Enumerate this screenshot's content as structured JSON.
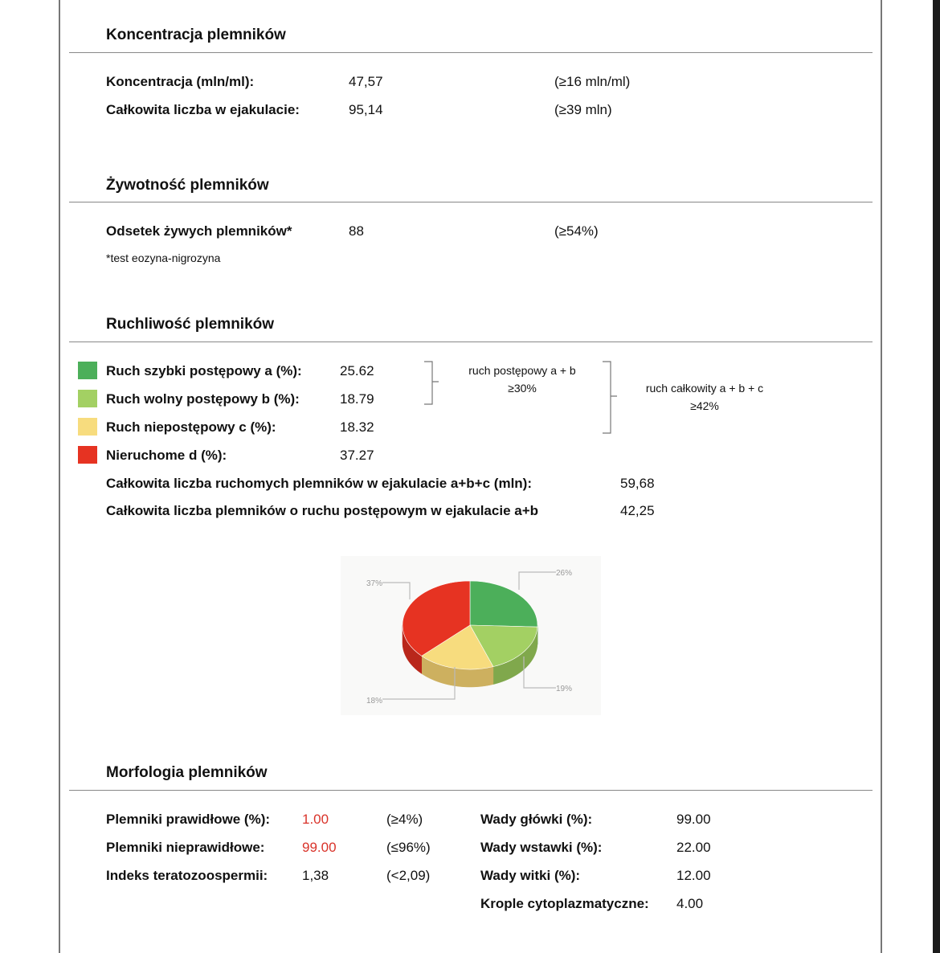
{
  "concentration": {
    "title": "Koncentracja plemników",
    "rows": [
      {
        "label": "Koncentracja (mln/ml):",
        "value": "47,57",
        "norm": "(≥16 mln/ml)"
      },
      {
        "label": "Całkowita liczba w ejakulacie:",
        "value": "95,14",
        "norm": "(≥39 mln)"
      }
    ]
  },
  "vitality": {
    "title": "Żywotność plemników",
    "label": "Odsetek żywych plemników*",
    "value": "88",
    "norm": "(≥54%)",
    "footnote": "*test eozyna-nigrozyna"
  },
  "motility": {
    "title": "Ruchliwość plemników",
    "rows": [
      {
        "label": "Ruch szybki postępowy a (%):",
        "value": "25.62",
        "color": "#4caf5a"
      },
      {
        "label": "Ruch wolny postępowy b (%):",
        "value": "18.79",
        "color": "#a3d063"
      },
      {
        "label": "Ruch niepostępowy c (%):",
        "value": "18.32",
        "color": "#f7dc7e"
      },
      {
        "label": "Nieruchome d (%):",
        "value": "37.27",
        "color": "#e63322"
      }
    ],
    "progressive_label": "ruch postępowy a + b",
    "progressive_norm": "≥30%",
    "total_label": "ruch całkowity a + b + c",
    "total_norm": "≥42%",
    "totals": [
      {
        "label": "Całkowita liczba ruchomych plemników w ejakulacie a+b+c (mln):",
        "value": "59,68"
      },
      {
        "label": "Całkowita liczba plemników o ruchu postępowym w ejakulacie a+b",
        "value": "42,25"
      }
    ]
  },
  "chart_data": {
    "type": "pie",
    "style": "3d",
    "categories": [
      "a",
      "b",
      "c",
      "d"
    ],
    "values": [
      25.62,
      18.79,
      18.32,
      37.27
    ],
    "labels": [
      "26%",
      "19%",
      "18%",
      "37%"
    ],
    "colors": [
      "#4caf5a",
      "#a3d063",
      "#f7dc7e",
      "#e63322"
    ],
    "side_colors": [
      "#3f8f4b",
      "#80a84c",
      "#cdb05f",
      "#b9271b"
    ]
  },
  "morphology": {
    "title": "Morfologia plemników",
    "left": [
      {
        "label": "Plemniki prawidłowe (%):",
        "value": "1.00",
        "norm": "(≥4%)",
        "abnormal": true
      },
      {
        "label": "Plemniki nieprawidłowe:",
        "value": "99.00",
        "norm": "(≤96%)",
        "abnormal": true
      },
      {
        "label": "Indeks teratozoospermii:",
        "value": "1,38",
        "norm": "(<2,09)",
        "abnormal": false
      }
    ],
    "right": [
      {
        "label": "Wady główki (%):",
        "value": "99.00"
      },
      {
        "label": "Wady wstawki (%):",
        "value": "22.00"
      },
      {
        "label": "Wady witki (%):",
        "value": "12.00"
      },
      {
        "label": "Krople cytoplazmatyczne:",
        "value": "4.00"
      }
    ]
  }
}
